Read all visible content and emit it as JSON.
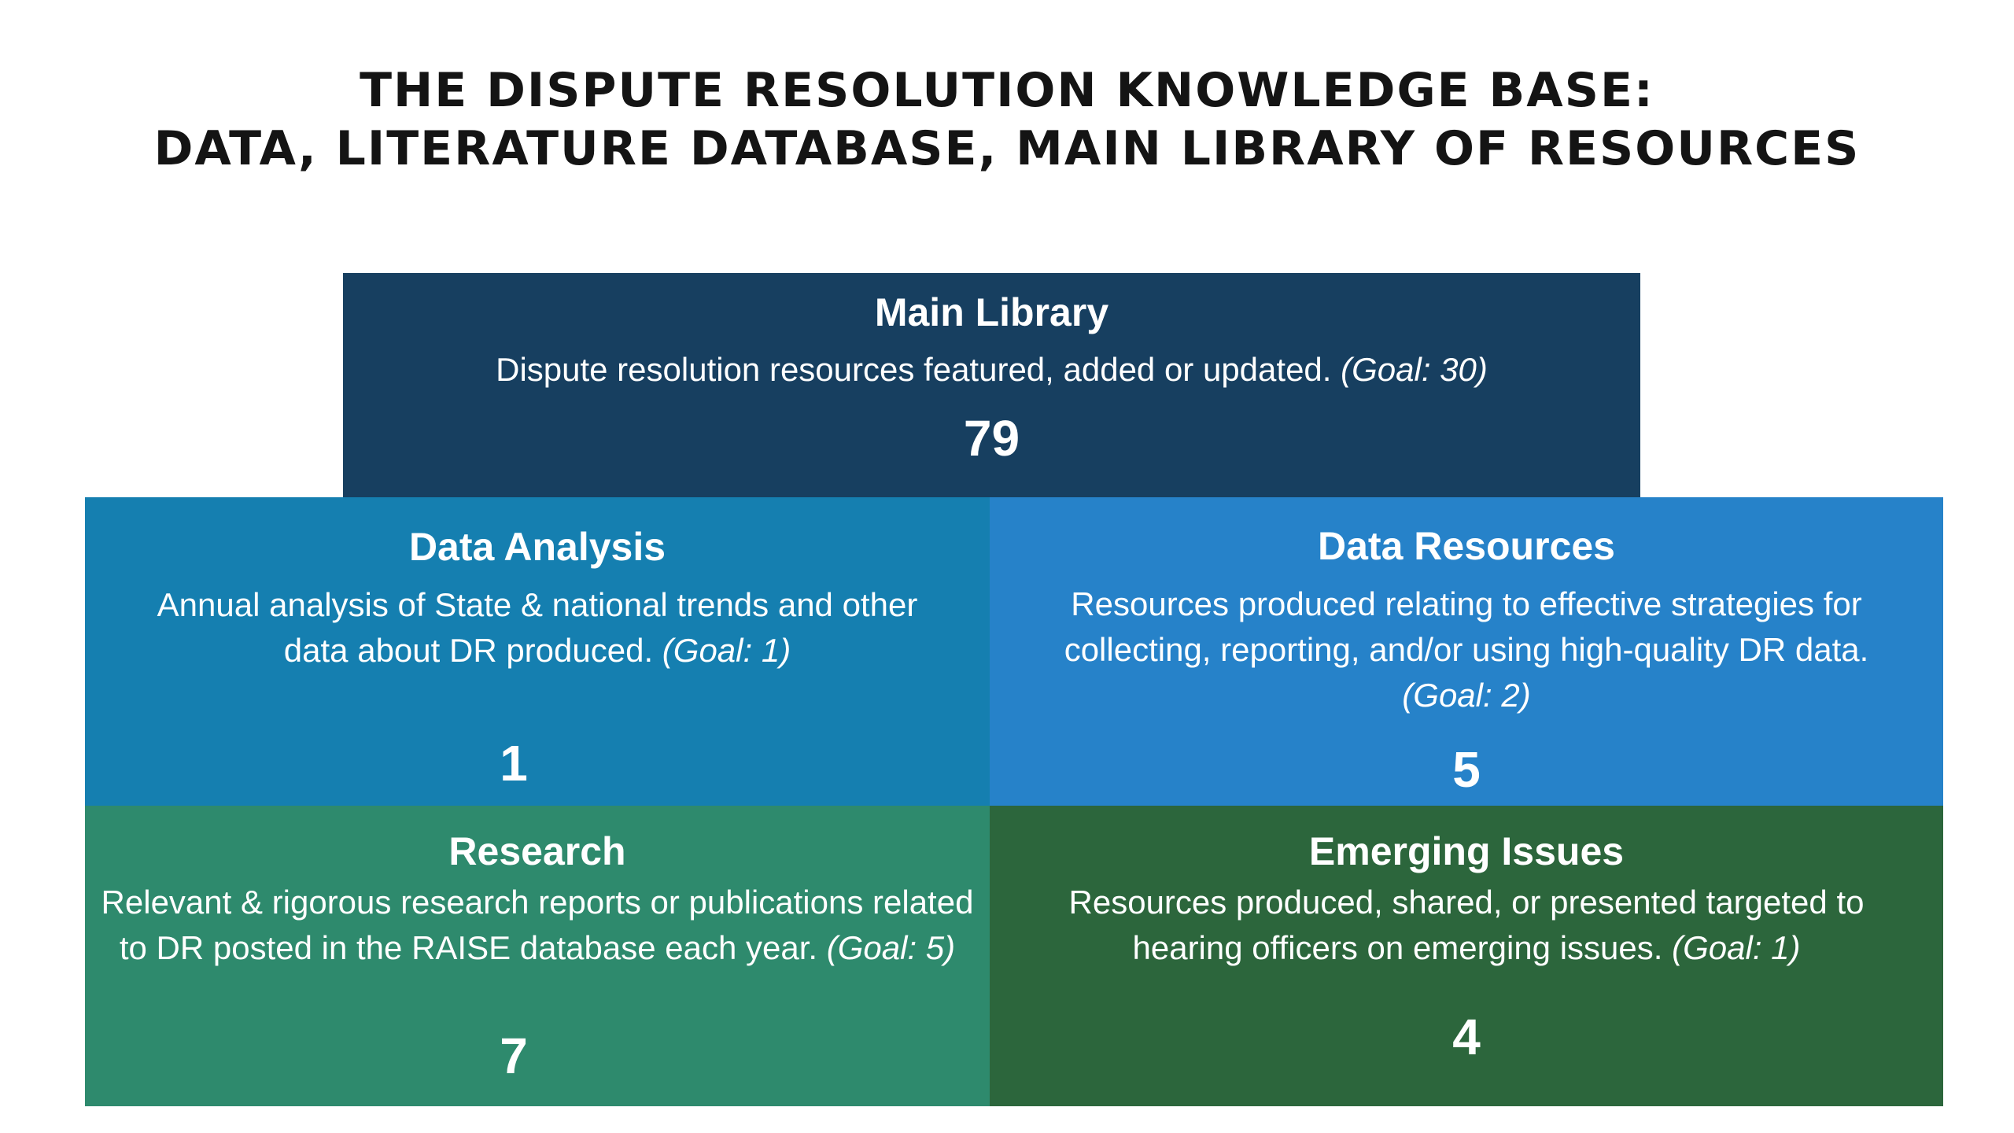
{
  "title": {
    "line1": "THE DISPUTE RESOLUTION KNOWLEDGE BASE:",
    "line2": "DATA, LITERATURE DATABASE, MAIN LIBRARY OF RESOURCES"
  },
  "boxes": {
    "main": {
      "heading": "Main Library",
      "description": "Dispute resolution resources featured, added or updated.",
      "goal": "(Goal: 30)",
      "value": "79",
      "color": "#173f60"
    },
    "analysis": {
      "heading": "Data Analysis",
      "description": "Annual analysis of State & national trends and other data about DR produced.",
      "goal": "(Goal: 1)",
      "value": "1",
      "color": "#157fb0"
    },
    "dataResources": {
      "heading": "Data Resources",
      "description": "Resources produced relating to effective strategies for collecting, reporting, and/or using high-quality DR data.",
      "goal": "(Goal: 2)",
      "value": "5",
      "color": "#2682c9"
    },
    "research": {
      "heading": "Research",
      "description": "Relevant & rigorous research reports or publications related to DR posted in the RAISE database each year.",
      "goal": "(Goal: 5)",
      "value": "7",
      "color": "#2e8a6d"
    },
    "emerging": {
      "heading": "Emerging Issues",
      "description": "Resources produced, shared, or presented targeted to hearing officers on emerging issues.",
      "goal": "(Goal: 1)",
      "value": "4",
      "color": "#2c663c"
    }
  }
}
